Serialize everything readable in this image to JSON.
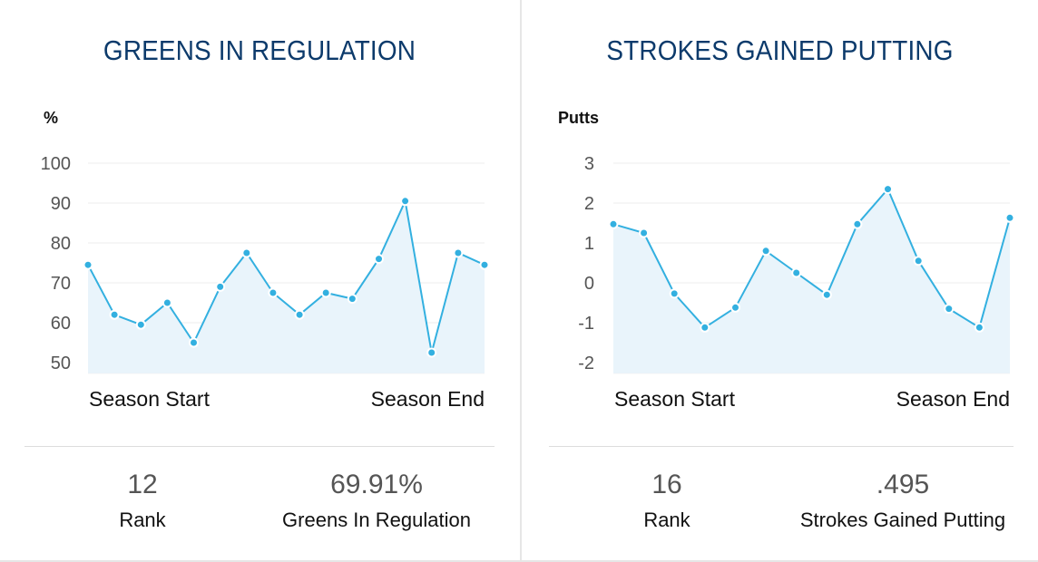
{
  "panels": [
    {
      "title": "GREENS IN REGULATION",
      "stats": [
        {
          "value": "12",
          "label": "Rank"
        },
        {
          "value": "69.91%",
          "label": "Greens In Regulation"
        }
      ]
    },
    {
      "title": "STROKES GAINED PUTTING",
      "stats": [
        {
          "value": "16",
          "label": "Rank"
        },
        {
          "value": ".495",
          "label": "Strokes Gained Putting"
        }
      ]
    }
  ],
  "colors": {
    "title": "#0c3a6b",
    "line": "#33b0e0",
    "fill": "#e9f4fb",
    "grid": "#ececec"
  },
  "chart_data": [
    {
      "type": "area",
      "title": "GREENS IN REGULATION",
      "ylabel": "%",
      "xlabel_start": "Season Start",
      "xlabel_end": "Season End",
      "yticks": [
        100,
        90,
        80,
        70,
        60,
        50
      ],
      "ylim": [
        48,
        100
      ],
      "grid": true,
      "values": [
        74.5,
        62,
        59.5,
        65,
        55,
        69,
        77.5,
        67.5,
        62,
        67.5,
        66,
        76,
        90.5,
        52.5,
        77.5,
        74.5
      ]
    },
    {
      "type": "area",
      "title": "STROKES GAINED PUTTING",
      "ylabel": "Putts",
      "xlabel_start": "Season Start",
      "xlabel_end": "Season End",
      "yticks": [
        3,
        2,
        1,
        0,
        -1,
        -2
      ],
      "ylim": [
        -2.2,
        3
      ],
      "grid": true,
      "values": [
        1.47,
        1.25,
        -0.27,
        -1.12,
        -0.62,
        0.8,
        0.25,
        -0.3,
        1.47,
        2.35,
        0.55,
        -0.65,
        -1.12,
        1.63
      ]
    }
  ]
}
